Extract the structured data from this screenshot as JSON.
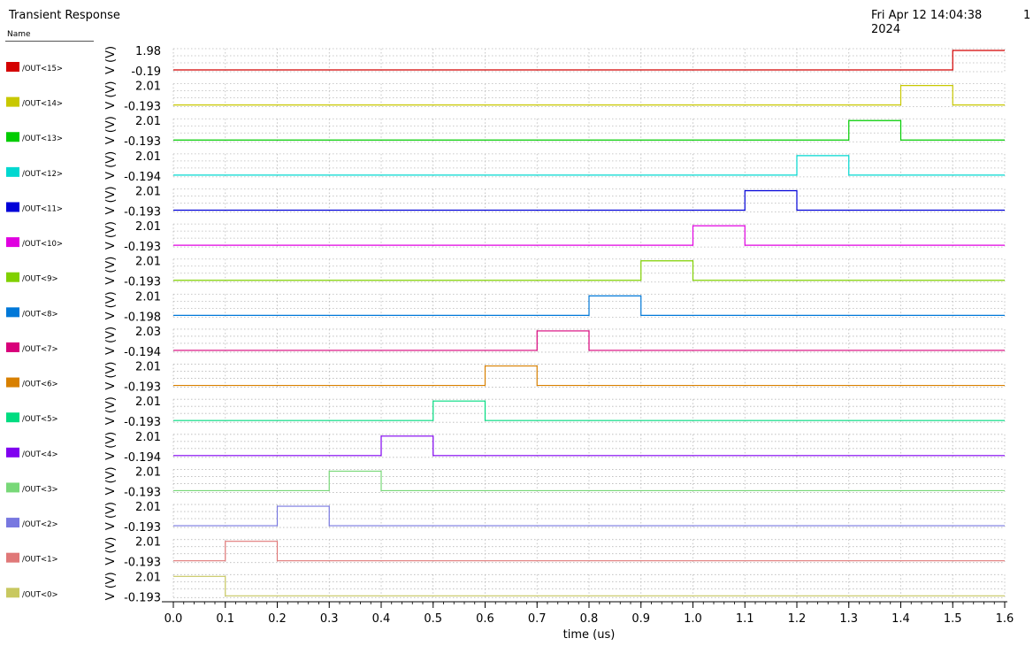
{
  "header": {
    "title": "Transient Response",
    "date": "Fri Apr 12 14:04:38\n2024",
    "page": "1",
    "legend_header": "Name"
  },
  "chart_data": {
    "type": "line",
    "xlabel": "time (us)",
    "xlim": [
      0,
      1.6
    ],
    "x_ticks": [
      "0.0",
      "0.1",
      "0.2",
      "0.3",
      "0.4",
      "0.5",
      "0.6",
      "0.7",
      "0.8",
      "0.9",
      "1.0",
      "1.1",
      "1.2",
      "1.3",
      "1.4",
      "1.5",
      "1.6"
    ],
    "ylabel": "V (V)",
    "series": [
      {
        "name": "/OUT<15>",
        "color": "#d40000",
        "ymax": "1.98",
        "ymin": "-0.19",
        "high": [
          1.5,
          1.6
        ]
      },
      {
        "name": "/OUT<14>",
        "color": "#c8c800",
        "ymax": "2.01",
        "ymin": "-0.193",
        "high": [
          1.4,
          1.5
        ]
      },
      {
        "name": "/OUT<13>",
        "color": "#00cc00",
        "ymax": "2.01",
        "ymin": "-0.193",
        "high": [
          1.3,
          1.4
        ]
      },
      {
        "name": "/OUT<12>",
        "color": "#00d8d0",
        "ymax": "2.01",
        "ymin": "-0.194",
        "high": [
          1.2,
          1.3
        ]
      },
      {
        "name": "/OUT<11>",
        "color": "#0000d8",
        "ymax": "2.01",
        "ymin": "-0.193",
        "high": [
          1.1,
          1.2
        ]
      },
      {
        "name": "/OUT<10>",
        "color": "#e000e0",
        "ymax": "2.01",
        "ymin": "-0.193",
        "high": [
          1.0,
          1.1
        ]
      },
      {
        "name": "/OUT<9>",
        "color": "#80d000",
        "ymax": "2.01",
        "ymin": "-0.193",
        "high": [
          0.9,
          1.0
        ]
      },
      {
        "name": "/OUT<8>",
        "color": "#0078d8",
        "ymax": "2.01",
        "ymin": "-0.198",
        "high": [
          0.8,
          0.9
        ]
      },
      {
        "name": "/OUT<7>",
        "color": "#d8007a",
        "ymax": "2.03",
        "ymin": "-0.194",
        "high": [
          0.7,
          0.8
        ]
      },
      {
        "name": "/OUT<6>",
        "color": "#d88000",
        "ymax": "2.01",
        "ymin": "-0.193",
        "high": [
          0.6,
          0.7
        ]
      },
      {
        "name": "/OUT<5>",
        "color": "#00dc80",
        "ymax": "2.01",
        "ymin": "-0.193",
        "high": [
          0.5,
          0.6
        ]
      },
      {
        "name": "/OUT<4>",
        "color": "#8000f0",
        "ymax": "2.01",
        "ymin": "-0.194",
        "high": [
          0.4,
          0.5
        ]
      },
      {
        "name": "/OUT<3>",
        "color": "#78d878",
        "ymax": "2.01",
        "ymin": "-0.193",
        "high": [
          0.3,
          0.4
        ]
      },
      {
        "name": "/OUT<2>",
        "color": "#7878e0",
        "ymax": "2.01",
        "ymin": "-0.193",
        "high": [
          0.2,
          0.3
        ]
      },
      {
        "name": "/OUT<1>",
        "color": "#e07878",
        "ymax": "2.01",
        "ymin": "-0.193",
        "high": [
          0.1,
          0.2
        ]
      },
      {
        "name": "/OUT<0>",
        "color": "#c8c860",
        "ymax": "2.01",
        "ymin": "-0.193",
        "high": [
          0.0,
          0.1
        ]
      }
    ]
  }
}
